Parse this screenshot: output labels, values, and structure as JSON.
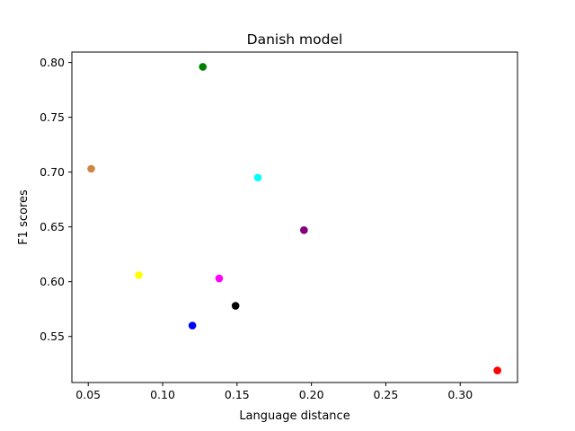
{
  "chart_data": {
    "type": "scatter",
    "title": "Danish model",
    "xlabel": "Language distance",
    "ylabel": "F1 scores",
    "xlim": [
      0.039,
      0.3385
    ],
    "ylim": [
      0.508,
      0.8095
    ],
    "xticks": [
      0.05,
      0.1,
      0.15,
      0.2,
      0.25,
      0.3
    ],
    "xtick_labels": [
      "0.05",
      "0.10",
      "0.15",
      "0.20",
      "0.25",
      "0.30"
    ],
    "yticks": [
      0.55,
      0.6,
      0.65,
      0.7,
      0.75,
      0.8
    ],
    "ytick_labels": [
      "0.55",
      "0.60",
      "0.65",
      "0.70",
      "0.75",
      "0.80"
    ],
    "grid": false,
    "points": [
      {
        "x": 0.052,
        "y": 0.703,
        "color": "#cd853f"
      },
      {
        "x": 0.084,
        "y": 0.606,
        "color": "#ffff00"
      },
      {
        "x": 0.12,
        "y": 0.56,
        "color": "#0000ff"
      },
      {
        "x": 0.127,
        "y": 0.796,
        "color": "#008000"
      },
      {
        "x": 0.138,
        "y": 0.603,
        "color": "#ff00ff"
      },
      {
        "x": 0.149,
        "y": 0.578,
        "color": "#000000"
      },
      {
        "x": 0.164,
        "y": 0.695,
        "color": "#00ffff"
      },
      {
        "x": 0.195,
        "y": 0.647,
        "color": "#800080"
      },
      {
        "x": 0.325,
        "y": 0.519,
        "color": "#ff0000"
      }
    ]
  }
}
